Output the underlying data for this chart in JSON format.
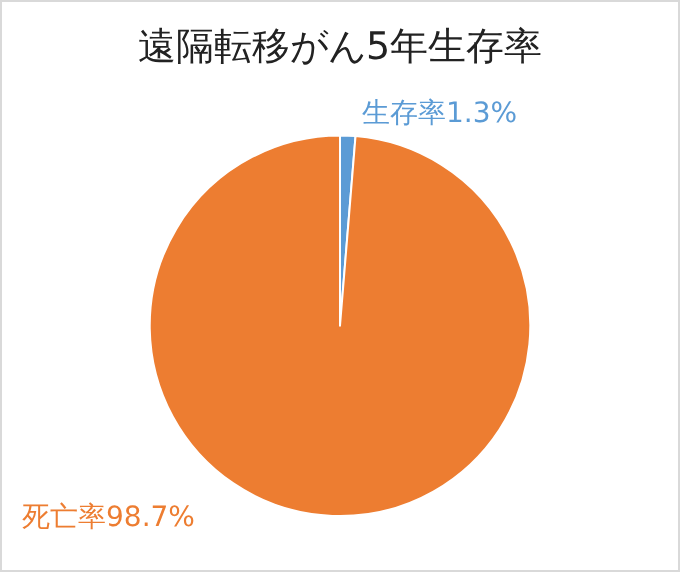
{
  "chart_data": {
    "type": "pie",
    "title": "遠隔転移がん5年生存率",
    "categories": [
      "生存率",
      "死亡率"
    ],
    "values": [
      1.3,
      98.7
    ],
    "colors": [
      "#5b9bd5",
      "#ed7d31"
    ],
    "value_labels": [
      "1.3%",
      "98.7%"
    ],
    "legend": false
  }
}
